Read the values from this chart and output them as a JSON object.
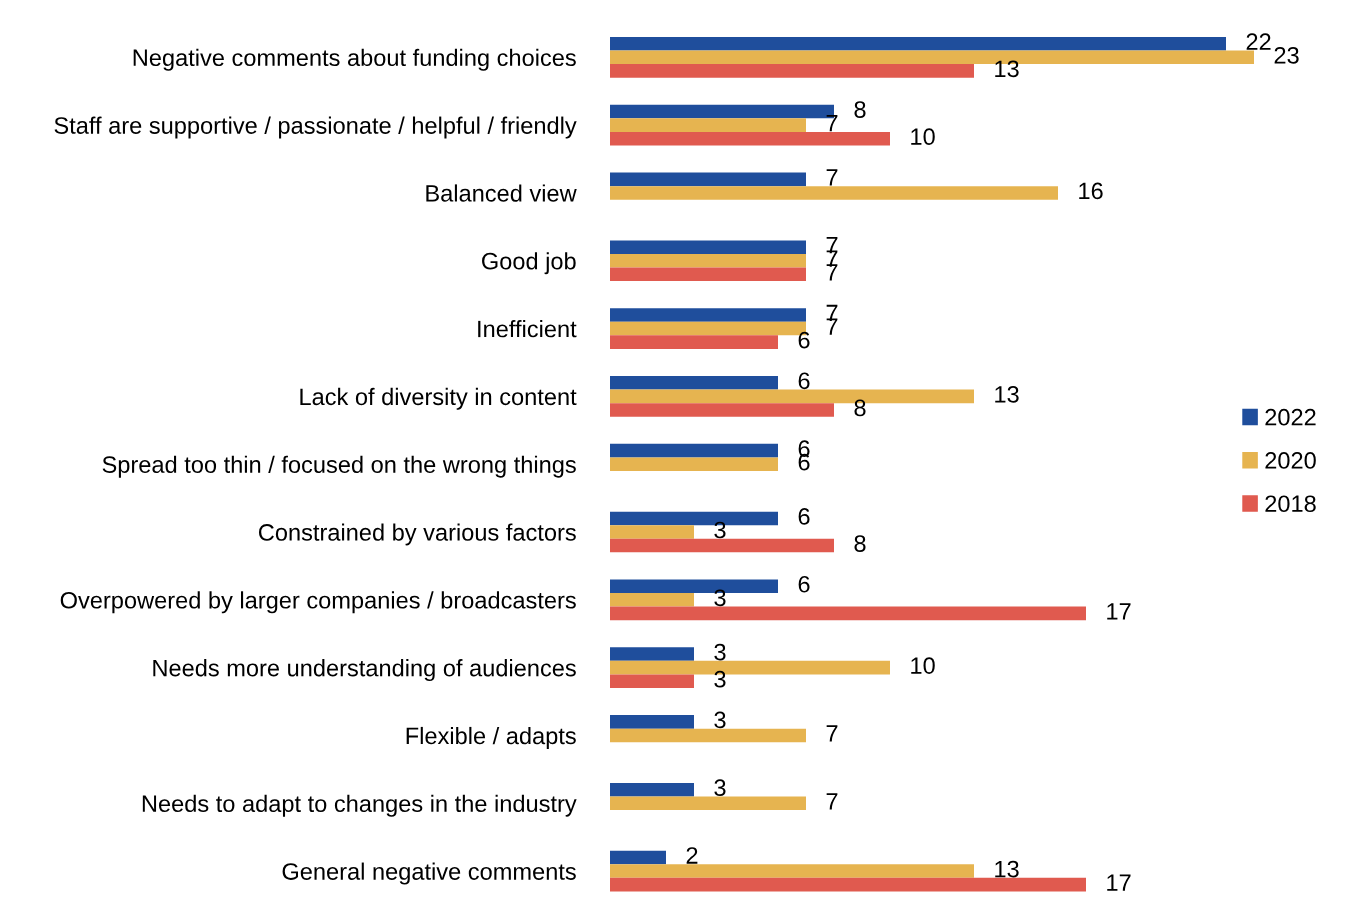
{
  "chart_data": {
    "type": "bar",
    "orientation": "horizontal",
    "data_labels": true,
    "tick_labels": "y",
    "grid": false,
    "legend": "right",
    "categories": [
      "Negative comments about funding choices",
      "Staff are supportive / passionate / helpful / friendly",
      "Balanced view",
      "Good job",
      "Inefficient",
      "Lack of diversity in content",
      "Spread too thin / focused on the wrong things",
      "Constrained by various factors",
      "Overpowered by larger companies / broadcasters",
      "Needs more understanding of audiences",
      "Flexible / adapts",
      "Needs to adapt to changes in the industry",
      "General negative comments"
    ],
    "series": [
      {
        "name": "2022",
        "color": "#1f4e9c",
        "values": [
          22,
          8,
          7,
          7,
          7,
          6,
          6,
          6,
          6,
          3,
          3,
          3,
          2
        ]
      },
      {
        "name": "2020",
        "color": "#e6b450",
        "values": [
          23,
          7,
          16,
          7,
          7,
          13,
          6,
          3,
          3,
          10,
          7,
          7,
          13
        ]
      },
      {
        "name": "2018",
        "color": "#e05a4f",
        "values": [
          13,
          10,
          null,
          7,
          6,
          8,
          null,
          8,
          17,
          3,
          null,
          null,
          17
        ]
      }
    ]
  }
}
